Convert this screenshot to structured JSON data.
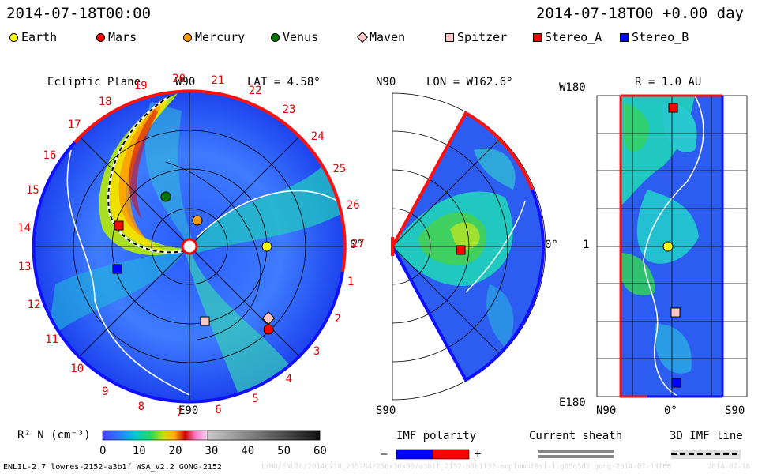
{
  "header": {
    "left_time": "2014-07-18T00:00",
    "right_time": "2014-07-18T00 +0.00 day"
  },
  "legend": [
    {
      "name": "Earth",
      "color": "#ffff00",
      "shape": "circle"
    },
    {
      "name": "Mars",
      "color": "#ff0000",
      "shape": "circle"
    },
    {
      "name": "Mercury",
      "color": "#ff9900",
      "shape": "circle"
    },
    {
      "name": "Venus",
      "color": "#007700",
      "shape": "circle"
    },
    {
      "name": "Maven",
      "color": "#ffc8c8",
      "shape": "diamond"
    },
    {
      "name": "Spitzer",
      "color": "#ffc8c8",
      "shape": "square"
    },
    {
      "name": "Stereo_A",
      "color": "#ff0000",
      "shape": "square"
    },
    {
      "name": "Stereo_B",
      "color": "#0000ff",
      "shape": "square"
    }
  ],
  "chart_data": [
    {
      "type": "heatmap",
      "title": "Ecliptic Plane",
      "subtitle": "LAT = 4.58°",
      "top_label": "W90",
      "bottom_label": "E90",
      "right_label": "0°",
      "carrington_ticks": [
        "20",
        "21",
        "22",
        "23",
        "24",
        "25",
        "26",
        "27",
        "1",
        "2",
        "3",
        "4",
        "5",
        "6",
        "7",
        "8",
        "9",
        "10",
        "11",
        "12",
        "13",
        "14",
        "15",
        "16",
        "17",
        "18",
        "19"
      ],
      "bodies": [
        "Earth",
        "Mars",
        "Mercury",
        "Venus",
        "Maven",
        "Spitzer",
        "Stereo_A",
        "Stereo_B"
      ]
    },
    {
      "type": "heatmap",
      "title": "LON = W162.6°",
      "top_label": "N90",
      "bottom_label": "S90",
      "right_label": "0°",
      "bodies": [
        "Stereo_A"
      ]
    },
    {
      "type": "heatmap",
      "title": "R = 1.0 AU",
      "y_top_label": "W180",
      "y_mid_label": "1",
      "y_bottom_label": "E180",
      "x_left_label": "N90",
      "x_mid_label": "0°",
      "x_right_label": "S90",
      "bodies": [
        "Stereo_A",
        "Earth",
        "Spitzer",
        "Stereo_B"
      ]
    }
  ],
  "colorbar": {
    "label": "R² N (cm⁻³)",
    "ticks": [
      "0",
      "10",
      "20",
      "30",
      "40",
      "50",
      "60"
    ],
    "range": [
      0,
      60
    ]
  },
  "imf_polarity": {
    "title": "IMF polarity",
    "minus": "–",
    "plus": "+",
    "neg_color": "#0000ff",
    "pos_color": "#ff0000"
  },
  "current_sheath": {
    "title": "Current sheath"
  },
  "imf_line": {
    "title": "3D IMF line"
  },
  "footer": {
    "left": "ENLIL-2.7 lowres-2152-a3b1f WSA_V2.2 GONG-2152",
    "middle": "tiMO/ENLIL/20140718_235784/256x30x90/a3b1f_2152-b3b1f32-mcp1umnf0s1-1.g85q5d2 gong-2014-07-18T00",
    "right": "2014-07-18"
  }
}
